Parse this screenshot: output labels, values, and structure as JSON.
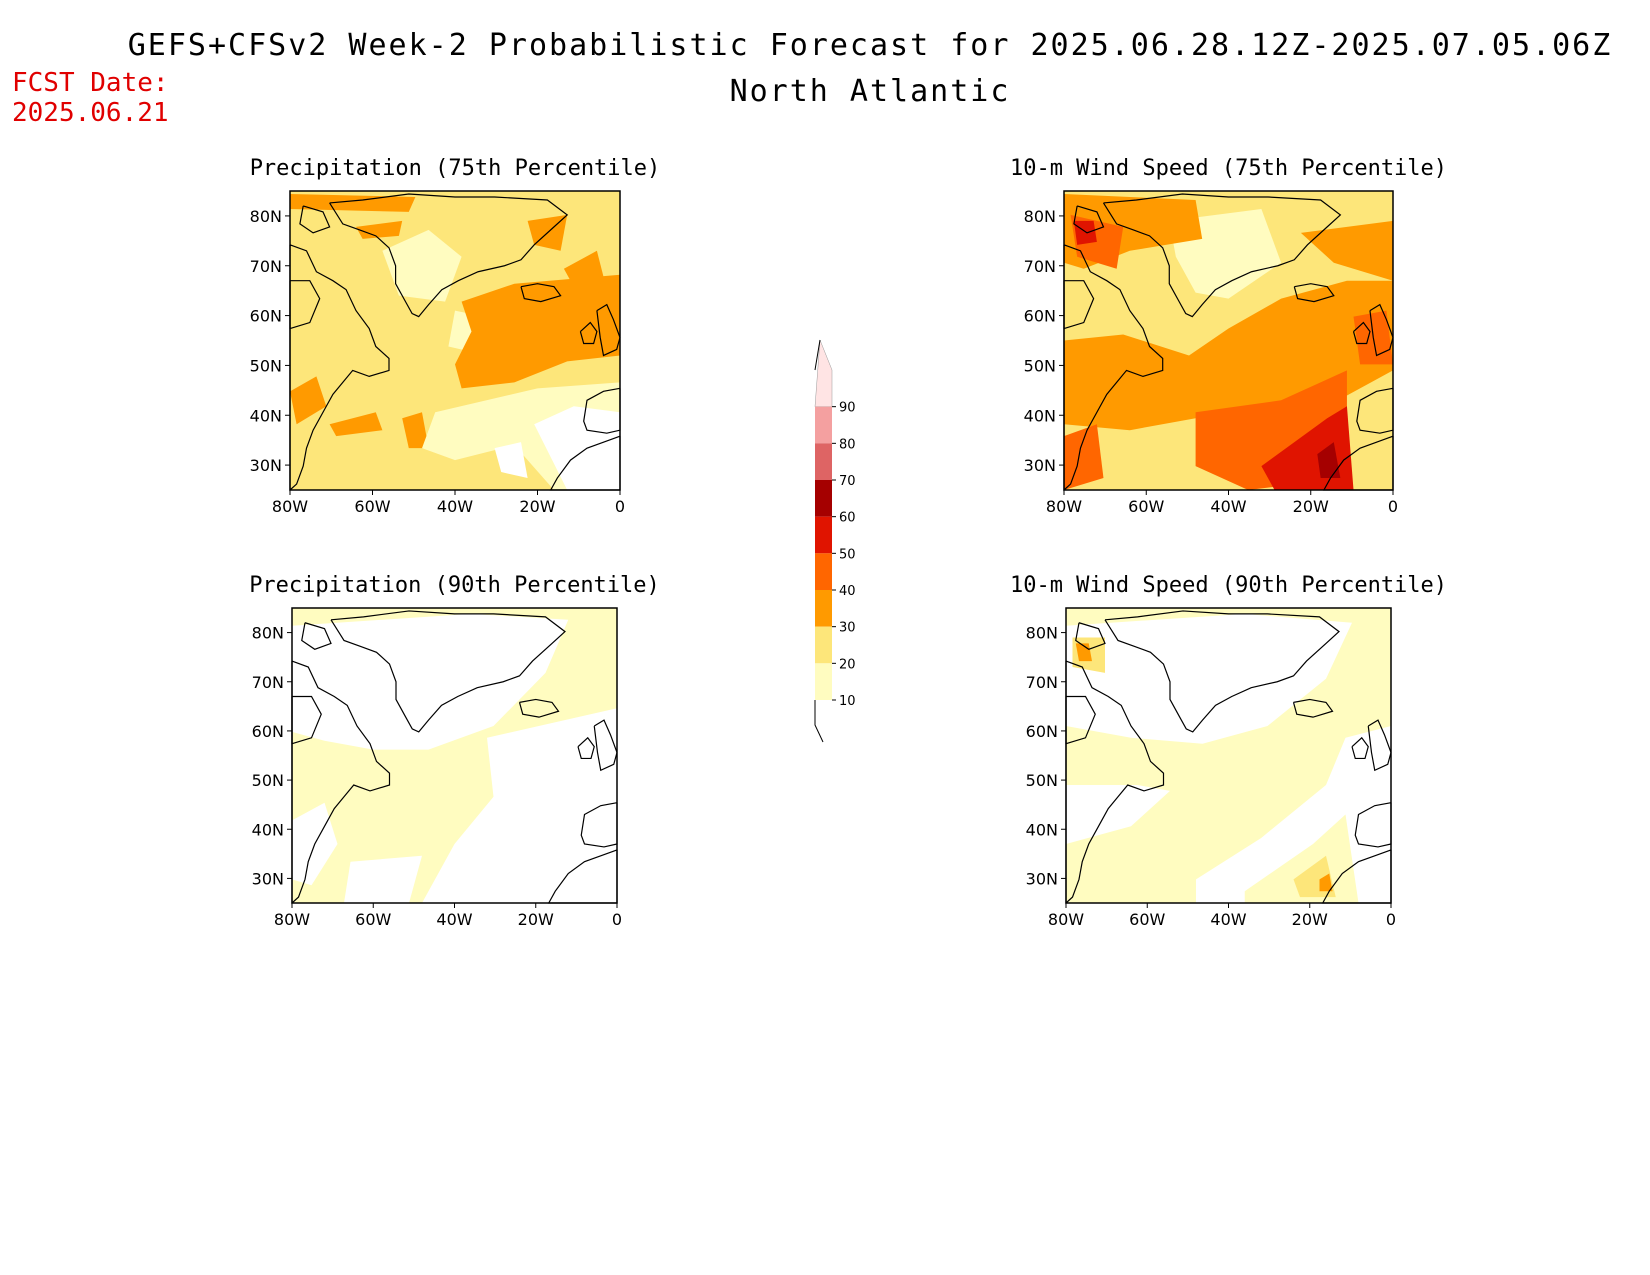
{
  "header": {
    "title": "GEFS+CFSv2 Week-2 Probabilistic Forecast for 2025.06.28.12Z-2025.07.05.06Z",
    "subtitle": "North Atlantic",
    "fcst_label": "FCST Date:",
    "fcst_date": "2025.06.21"
  },
  "panels": [
    {
      "title": "Precipitation (75th Percentile)",
      "variable": "precipitation",
      "percentile": 75
    },
    {
      "title": "10-m Wind Speed (75th Percentile)",
      "variable": "wind",
      "percentile": 75
    },
    {
      "title": "Precipitation (90th Percentile)",
      "variable": "precipitation",
      "percentile": 90
    },
    {
      "title": "10-m Wind Speed (90th Percentile)",
      "variable": "wind",
      "percentile": 90
    }
  ],
  "map_axes": {
    "lat_labels": [
      "80N",
      "70N",
      "60N",
      "50N",
      "40N",
      "30N"
    ],
    "lat_values": [
      80,
      70,
      60,
      50,
      40,
      30
    ],
    "lon_labels": [
      "80W",
      "60W",
      "40W",
      "20W",
      "0"
    ],
    "lon_values": [
      -80,
      -60,
      -40,
      -20,
      0
    ],
    "lat_range": [
      25,
      85
    ],
    "lon_range": [
      -80,
      0
    ]
  },
  "colorbar": {
    "labels": [
      "10",
      "20",
      "30",
      "40",
      "50",
      "60",
      "70",
      "80",
      "90"
    ],
    "colors": [
      "#fffcc0",
      "#fde67a",
      "#ff9a00",
      "#ff6600",
      "#e01400",
      "#a50000",
      "#de6464",
      "#f4a0a0",
      "#ffe4e4"
    ]
  }
}
